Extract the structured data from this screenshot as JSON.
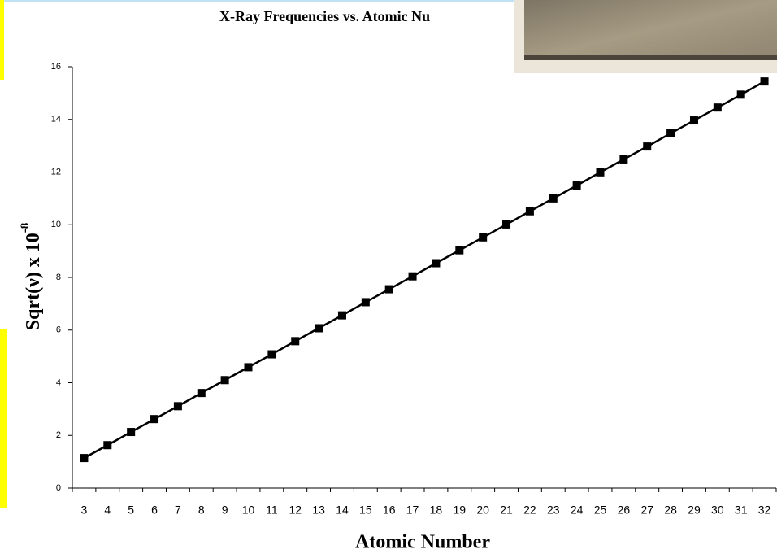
{
  "chart_data": {
    "type": "line",
    "title": "X-Ray Frequencies vs. Atomic Nu",
    "x_label": "Atomic Number",
    "y_label": "Sqrt(ν) x 10",
    "y_label_exponent": "-8",
    "categories": [
      3,
      4,
      5,
      6,
      7,
      8,
      9,
      10,
      11,
      12,
      13,
      14,
      15,
      16,
      17,
      18,
      19,
      20,
      21,
      22,
      23,
      24,
      25,
      26,
      27,
      28,
      29,
      30,
      31,
      32
    ],
    "values": [
      1.14,
      1.63,
      2.13,
      2.62,
      3.11,
      3.61,
      4.1,
      4.59,
      5.08,
      5.58,
      6.07,
      6.56,
      7.06,
      7.55,
      8.04,
      8.54,
      9.03,
      9.52,
      10.01,
      10.51,
      11.0,
      11.49,
      11.99,
      12.48,
      12.97,
      13.47,
      13.96,
      14.45,
      14.94,
      15.44
    ],
    "color": "#000000",
    "ylim": [
      0,
      16
    ],
    "yticks": [
      0,
      2,
      4,
      6,
      8,
      10,
      12,
      14,
      16
    ],
    "grid": false
  }
}
